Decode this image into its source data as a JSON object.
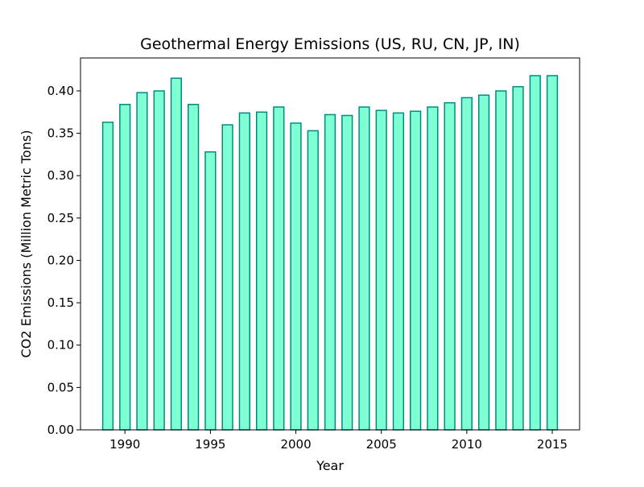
{
  "chart_data": {
    "type": "bar",
    "title": "Geothermal Energy Emissions (US, RU, CN, JP, IN)",
    "xlabel": "Year",
    "ylabel": "CO2 Emissions (Million Metric Tons)",
    "x": [
      1989,
      1990,
      1991,
      1992,
      1993,
      1994,
      1995,
      1996,
      1997,
      1998,
      1999,
      2000,
      2001,
      2002,
      2003,
      2004,
      2005,
      2006,
      2007,
      2008,
      2009,
      2010,
      2011,
      2012,
      2013,
      2014,
      2015
    ],
    "values": [
      0.363,
      0.384,
      0.398,
      0.4,
      0.415,
      0.384,
      0.328,
      0.36,
      0.374,
      0.375,
      0.381,
      0.362,
      0.353,
      0.372,
      0.371,
      0.381,
      0.377,
      0.374,
      0.376,
      0.381,
      0.386,
      0.392,
      0.395,
      0.4,
      0.405,
      0.418,
      0.418
    ],
    "xlim": [
      1987.4,
      2016.6
    ],
    "ylim": [
      0,
      0.4389
    ],
    "xticks": [
      1990,
      1995,
      2000,
      2005,
      2010,
      2015
    ],
    "yticks": [
      0.0,
      0.05,
      0.1,
      0.15,
      0.2,
      0.25,
      0.3,
      0.35,
      0.4
    ],
    "ytick_labels": [
      "0.00",
      "0.05",
      "0.10",
      "0.15",
      "0.20",
      "0.25",
      "0.30",
      "0.35",
      "0.40"
    ],
    "grid": false,
    "colors": {
      "bar_fill": "#7fffd4",
      "bar_edge": "#008b80"
    }
  }
}
